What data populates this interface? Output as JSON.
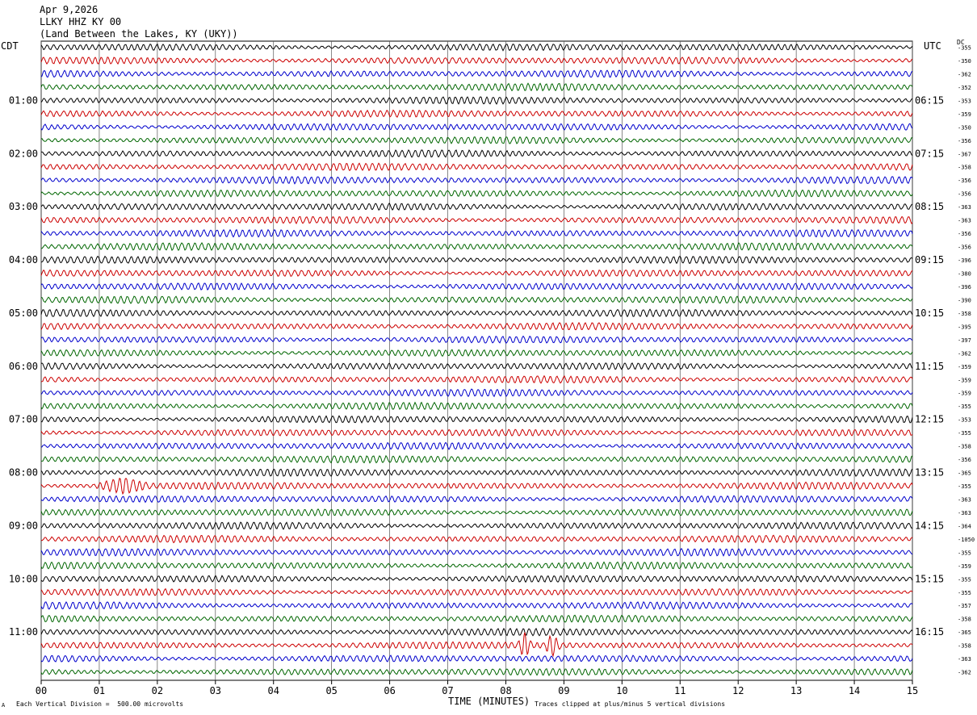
{
  "header": {
    "date": "Apr 9,2026",
    "station": "LLKY HHZ KY 00",
    "location": "(Land Between the Lakes, KY (UKY))"
  },
  "axis_labels": {
    "left_timezone": "CDT",
    "right_timezone": "UTC",
    "dc_label": "DC"
  },
  "footer": {
    "xaxis_title": "TIME (MINUTES)",
    "left_note": "Each Vertical Division =  500.00 microvolts",
    "right_note": "Traces clipped at plus/minus 5 vertical divisions",
    "corner_mark": "A"
  },
  "colors": {
    "trace_cycle": [
      "#000000",
      "#cc0000",
      "#0000cc",
      "#006600"
    ],
    "grid": "#000000"
  },
  "chart_data": {
    "type": "line",
    "subtype": "helicorder",
    "x_ticks": [
      "00",
      "01",
      "02",
      "03",
      "04",
      "05",
      "06",
      "07",
      "08",
      "09",
      "10",
      "11",
      "12",
      "13",
      "14",
      "15"
    ],
    "xlim": [
      0,
      15
    ],
    "xlabel": "TIME (MINUTES)",
    "minutes_per_line": 15,
    "hour_labels_left": [
      "01:00",
      "02:00",
      "03:00",
      "04:00",
      "05:00",
      "06:00",
      "07:00",
      "08:00",
      "09:00",
      "10:00",
      "11:00"
    ],
    "hour_labels_right": [
      "06:15",
      "07:15",
      "08:15",
      "09:15",
      "10:15",
      "11:15",
      "12:15",
      "13:15",
      "14:15",
      "15:15",
      "16:15"
    ],
    "dc_offsets": [
      "-355",
      "-350",
      "-362",
      "-352",
      "-353",
      "-359",
      "-350",
      "-356",
      "-367",
      "-358",
      "-356",
      "-356",
      "-363",
      "-363",
      "-356",
      "-356",
      "-396",
      "-380",
      "-396",
      "-390",
      "-358",
      "-395",
      "-397",
      "-362",
      "-359",
      "-359",
      "-359",
      "-355",
      "-353",
      "-355",
      "-358",
      "-356",
      "-365",
      "-355",
      "-363",
      "-363",
      "-364",
      "-1050",
      "-355",
      "-359",
      "-355",
      "-355",
      "-357",
      "-358",
      "-365",
      "-358",
      "-363",
      "-362"
    ],
    "events": [
      {
        "line_index": 33,
        "minute_start": 0.9,
        "minute_end": 1.9,
        "relative_amplitude": 1.6
      },
      {
        "line_index": 45,
        "minute_start": 8.2,
        "minute_end": 8.45,
        "relative_amplitude": 2.6
      },
      {
        "line_index": 45,
        "minute_start": 8.65,
        "minute_end": 8.95,
        "relative_amplitude": 2.3
      }
    ],
    "amplitude_per_division_microvolts": 500,
    "clip_divisions": 5
  }
}
